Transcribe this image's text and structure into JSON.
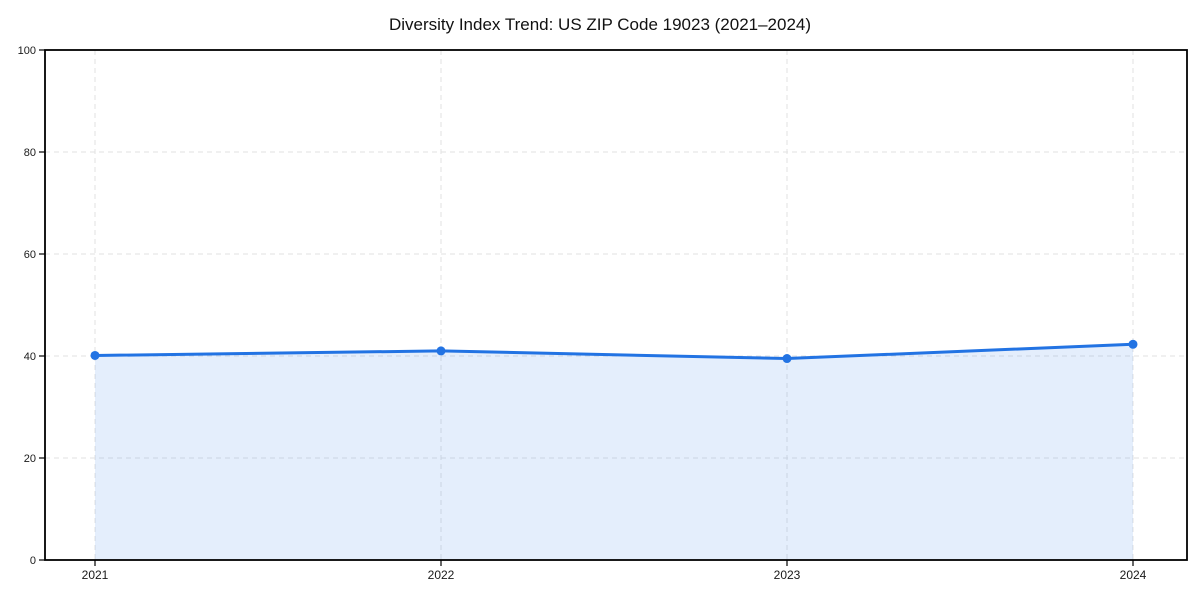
{
  "chart_data": {
    "type": "area",
    "title": "Diversity Index Trend: US ZIP Code 19023 (2021–2024)",
    "categories": [
      "2021",
      "2022",
      "2023",
      "2024"
    ],
    "series": [
      {
        "name": "Diversity Index",
        "values": [
          40.1,
          41.0,
          39.5,
          42.3
        ]
      }
    ],
    "xlabel": "",
    "ylabel": "",
    "ylim": [
      0,
      100
    ],
    "yticks": [
      0,
      20,
      40,
      60,
      80,
      100
    ],
    "grid": true,
    "grid_style": "dashed",
    "legend_position": "none",
    "marker": "circle",
    "colors": {
      "line": "#2273e3",
      "marker": "#2273e3",
      "fill": "rgba(34,115,227,0.12)",
      "grid": "#e2e2e2",
      "axis": "#000000",
      "tick_label": "#1a1a1a",
      "title": "#111111",
      "background": "#ffffff"
    }
  }
}
